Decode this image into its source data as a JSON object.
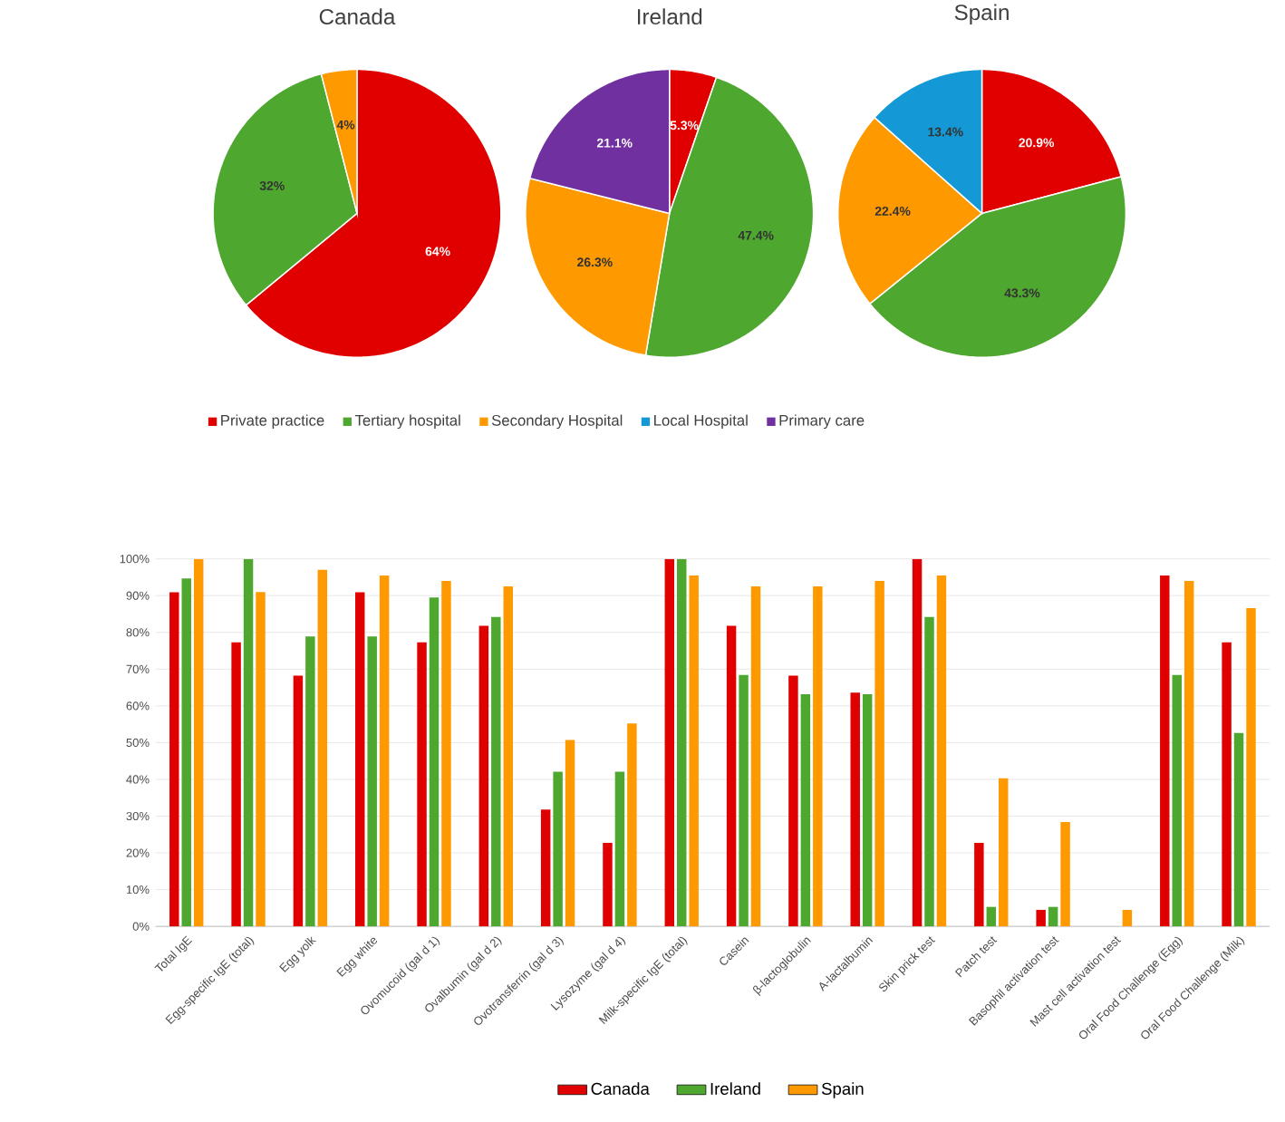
{
  "chart_data": [
    {
      "type": "pie",
      "title": "Canada",
      "categories": [
        null,
        null,
        null,
        null,
        null
      ],
      "values": [
        64,
        32,
        4,
        0,
        0
      ],
      "colors": [
        "#e00000",
        "#4ea72e",
        "#ff9900",
        "#1499d6",
        "#7030a0"
      ],
      "value_labels": [
        "64%",
        "32%",
        "4%",
        null,
        null
      ]
    },
    {
      "type": "pie",
      "title": "Ireland",
      "categories": [
        "Private practice",
        "Tertiary hospital",
        "Secondary Hospital",
        "Local Hospital",
        "Primary care"
      ],
      "values": [
        5.3,
        47.4,
        26.3,
        0,
        21.1
      ],
      "colors": [
        "#e00000",
        "#4ea72e",
        "#ff9900",
        "#1499d6",
        "#7030a0"
      ],
      "value_labels": [
        "5.3%",
        "47.4%",
        "26.3%",
        null,
        "21.1%"
      ],
      "legend": "bottom"
    },
    {
      "type": "pie",
      "title": "Spain",
      "categories": [
        null,
        null,
        null,
        null,
        null
      ],
      "values": [
        20.9,
        43.3,
        22.4,
        13.4,
        0
      ],
      "colors": [
        "#e00000",
        "#4ea72e",
        "#ff9900",
        "#1499d6",
        "#7030a0"
      ],
      "value_labels": [
        "20.9%",
        "43.3%",
        "22.4%",
        "13.4%",
        null
      ]
    },
    {
      "type": "bar",
      "categories": [
        "Total IgE",
        "Egg-specific IgE (total)",
        "Egg yolk",
        "Egg white",
        "Ovomucoid (gal d 1)",
        "Ovalbumin (gal d 2)",
        "Ovotransferrin (gal d 3)",
        "Lysozyme (gal d 4)",
        "Milk-specific IgE (total)",
        "Casein",
        "β-lactoglobulin",
        "A-lactalbumin",
        "Skin prick test",
        "Patch test",
        "Basophil activation test",
        "Mast cell activation test",
        "Oral Food Challenge (Egg)",
        "Oral Food Challenge (Milk)"
      ],
      "series": [
        {
          "name": "Canada",
          "color": "#e00000",
          "values": [
            90.9,
            77.3,
            68.2,
            90.9,
            77.3,
            81.8,
            31.8,
            22.7,
            100,
            81.8,
            68.2,
            63.6,
            100,
            22.7,
            4.5,
            0,
            95.5,
            77.3
          ]
        },
        {
          "name": "Ireland",
          "color": "#4ea72e",
          "values": [
            94.7,
            100,
            78.9,
            78.9,
            89.5,
            84.2,
            42.1,
            42.1,
            100,
            68.4,
            63.2,
            63.2,
            84.2,
            5.3,
            5.3,
            0,
            68.4,
            52.6
          ]
        },
        {
          "name": "Spain",
          "color": "#ff9900",
          "values": [
            100,
            91,
            97,
            95.5,
            94,
            92.5,
            50.7,
            55.2,
            95.5,
            92.5,
            92.5,
            94,
            95.5,
            40.3,
            28.4,
            4.5,
            94,
            86.6
          ]
        }
      ],
      "ylim": [
        0,
        100
      ],
      "yticks": [
        {
          "value": 0,
          "label": "0%"
        },
        {
          "value": 10,
          "label": "10%"
        },
        {
          "value": 20,
          "label": "20%"
        },
        {
          "value": 30,
          "label": "30%"
        },
        {
          "value": 40,
          "label": "40%"
        },
        {
          "value": 50,
          "label": "50%"
        },
        {
          "value": 60,
          "label": "60%"
        },
        {
          "value": 70,
          "label": "70%"
        },
        {
          "value": 80,
          "label": "80%"
        },
        {
          "value": 90,
          "label": "90%"
        },
        {
          "value": 100,
          "label": "100%"
        }
      ],
      "grid": "y",
      "legend": "bottom"
    }
  ]
}
